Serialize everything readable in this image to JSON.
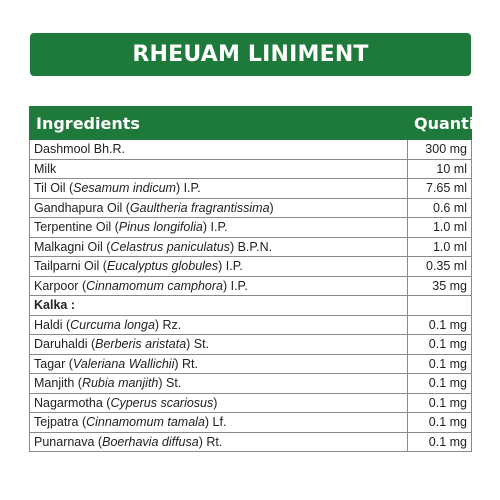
{
  "title": "RHEUAM LINIMENT",
  "table": {
    "headers": {
      "ingredient": "Ingredients",
      "quantity": "Quantity"
    },
    "rows": [
      {
        "pre": "Dashmool Bh.R.",
        "latin": "",
        "post": "",
        "qty": "300 mg"
      },
      {
        "pre": "Milk",
        "latin": "",
        "post": "",
        "qty": "10 ml"
      },
      {
        "pre": "Til Oil (",
        "latin": "Sesamum indicum",
        "post": ") I.P.",
        "qty": "7.65 ml"
      },
      {
        "pre": "Gandhapura Oil (",
        "latin": "Gaultheria fragrantissima",
        "post": ")",
        "qty": "0.6 ml"
      },
      {
        "pre": "Terpentine Oil (",
        "latin": "Pinus longifolia",
        "post": ") I.P.",
        "qty": "1.0 ml"
      },
      {
        "pre": "Malkagni Oil (",
        "latin": "Celastrus paniculatus",
        "post": ") B.P.N.",
        "qty": "1.0 ml"
      },
      {
        "pre": "Tailparni Oil (",
        "latin": "Eucalyptus globules",
        "post": ") I.P.",
        "qty": "0.35 ml"
      },
      {
        "pre": "Karpoor (",
        "latin": "Cinnamomum camphora",
        "post": ") I.P.",
        "qty": "35 mg"
      },
      {
        "pre": "Kalka :",
        "latin": "",
        "post": "",
        "qty": "",
        "section": true
      },
      {
        "pre": "Haldi (",
        "latin": "Curcuma longa",
        "post": ") Rz.",
        "qty": "0.1 mg"
      },
      {
        "pre": "Daruhaldi (",
        "latin": "Berberis aristata",
        "post": ") St.",
        "qty": "0.1 mg"
      },
      {
        "pre": "Tagar (",
        "latin": "Valeriana Wallichii",
        "post": ") Rt.",
        "qty": "0.1 mg"
      },
      {
        "pre": "Manjith (",
        "latin": "Rubia manjith",
        "post": ") St.",
        "qty": "0.1 mg"
      },
      {
        "pre": "Nagarmotha (",
        "latin": "Cyperus scariosus",
        "post": ")",
        "qty": "0.1 mg"
      },
      {
        "pre": "Tejpatra (",
        "latin": "Cinnamomum tamala",
        "post": ") Lf.",
        "qty": "0.1 mg"
      },
      {
        "pre": "Punarnava (",
        "latin": "Boerhavia diffusa",
        "post": ") Rt.",
        "qty": "0.1 mg"
      }
    ]
  },
  "colors": {
    "brand_green": "#1e7a3a",
    "border_gray": "#8a8a8a",
    "text": "#222222"
  }
}
